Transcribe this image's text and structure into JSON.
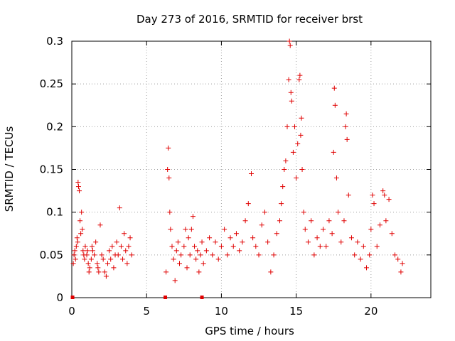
{
  "chart_data": {
    "type": "scatter",
    "title": "Day 273 of 2016, SRMTID for receiver brst",
    "xlabel": "GPS time / hours",
    "ylabel": "SRMTID / TECUs",
    "xlim": [
      0,
      24
    ],
    "ylim": [
      0,
      0.3
    ],
    "x_ticks": [
      0,
      5,
      10,
      15,
      20
    ],
    "x_tick_labels": [
      "0",
      "5",
      "10",
      "15",
      "20"
    ],
    "y_ticks": [
      0,
      0.05,
      0.1,
      0.15,
      0.2,
      0.25,
      0.3
    ],
    "y_tick_labels": [
      "0",
      "0.05",
      "0.1",
      "0.15",
      "0.2",
      "0.25",
      "0.3"
    ],
    "grid": true,
    "marker": "+",
    "colors": {
      "series": "#e00000",
      "grid": "#a0a0a0",
      "axes": "#000000"
    },
    "series": [
      {
        "name": "SRMTID",
        "points": [
          [
            0.1,
            0.04
          ],
          [
            0.15,
            0.05
          ],
          [
            0.2,
            0.055
          ],
          [
            0.25,
            0.045
          ],
          [
            0.3,
            0.06
          ],
          [
            0.35,
            0.07
          ],
          [
            0.4,
            0.065
          ],
          [
            0.42,
            0.135
          ],
          [
            0.45,
            0.13
          ],
          [
            0.5,
            0.125
          ],
          [
            0.55,
            0.09
          ],
          [
            0.6,
            0.075
          ],
          [
            0.65,
            0.1
          ],
          [
            0.7,
            0.08
          ],
          [
            0.75,
            0.055
          ],
          [
            0.8,
            0.05
          ],
          [
            0.85,
            0.045
          ],
          [
            0.9,
            0.06
          ],
          [
            1.0,
            0.05
          ],
          [
            1.05,
            0.055
          ],
          [
            1.1,
            0.04
          ],
          [
            1.15,
            0.03
          ],
          [
            1.2,
            0.035
          ],
          [
            1.3,
            0.045
          ],
          [
            1.35,
            0.06
          ],
          [
            1.4,
            0.055
          ],
          [
            1.5,
            0.05
          ],
          [
            1.6,
            0.065
          ],
          [
            1.7,
            0.04
          ],
          [
            1.75,
            0.035
          ],
          [
            1.8,
            0.03
          ],
          [
            1.9,
            0.085
          ],
          [
            2.0,
            0.05
          ],
          [
            2.1,
            0.045
          ],
          [
            2.2,
            0.03
          ],
          [
            2.3,
            0.025
          ],
          [
            2.4,
            0.04
          ],
          [
            2.5,
            0.055
          ],
          [
            2.6,
            0.045
          ],
          [
            2.7,
            0.06
          ],
          [
            2.8,
            0.035
          ],
          [
            2.9,
            0.05
          ],
          [
            3.0,
            0.065
          ],
          [
            3.1,
            0.05
          ],
          [
            3.2,
            0.105
          ],
          [
            3.3,
            0.06
          ],
          [
            3.4,
            0.045
          ],
          [
            3.5,
            0.075
          ],
          [
            3.6,
            0.055
          ],
          [
            3.7,
            0.04
          ],
          [
            3.8,
            0.06
          ],
          [
            3.9,
            0.07
          ],
          [
            4.0,
            0.05
          ],
          [
            6.3,
            0.03
          ],
          [
            6.4,
            0.15
          ],
          [
            6.45,
            0.175
          ],
          [
            6.5,
            0.14
          ],
          [
            6.55,
            0.1
          ],
          [
            6.6,
            0.08
          ],
          [
            6.7,
            0.06
          ],
          [
            6.8,
            0.045
          ],
          [
            6.9,
            0.02
          ],
          [
            7.0,
            0.055
          ],
          [
            7.1,
            0.065
          ],
          [
            7.2,
            0.04
          ],
          [
            7.3,
            0.05
          ],
          [
            7.5,
            0.06
          ],
          [
            7.6,
            0.08
          ],
          [
            7.7,
            0.035
          ],
          [
            7.8,
            0.07
          ],
          [
            7.9,
            0.05
          ],
          [
            8.0,
            0.08
          ],
          [
            8.1,
            0.095
          ],
          [
            8.2,
            0.06
          ],
          [
            8.3,
            0.045
          ],
          [
            8.4,
            0.055
          ],
          [
            8.5,
            0.03
          ],
          [
            8.6,
            0.05
          ],
          [
            8.7,
            0.065
          ],
          [
            8.8,
            0.04
          ],
          [
            9.0,
            0.055
          ],
          [
            9.2,
            0.07
          ],
          [
            9.4,
            0.05
          ],
          [
            9.6,
            0.065
          ],
          [
            9.8,
            0.045
          ],
          [
            10.0,
            0.06
          ],
          [
            10.2,
            0.08
          ],
          [
            10.4,
            0.05
          ],
          [
            10.6,
            0.07
          ],
          [
            10.8,
            0.06
          ],
          [
            11.0,
            0.075
          ],
          [
            11.2,
            0.055
          ],
          [
            11.4,
            0.065
          ],
          [
            11.6,
            0.09
          ],
          [
            11.8,
            0.11
          ],
          [
            12.0,
            0.145
          ],
          [
            12.1,
            0.07
          ],
          [
            12.3,
            0.06
          ],
          [
            12.5,
            0.05
          ],
          [
            12.7,
            0.085
          ],
          [
            12.9,
            0.1
          ],
          [
            13.1,
            0.065
          ],
          [
            13.3,
            0.03
          ],
          [
            13.5,
            0.05
          ],
          [
            13.7,
            0.075
          ],
          [
            13.9,
            0.09
          ],
          [
            14.0,
            0.11
          ],
          [
            14.1,
            0.13
          ],
          [
            14.2,
            0.15
          ],
          [
            14.3,
            0.16
          ],
          [
            14.4,
            0.2
          ],
          [
            14.5,
            0.255
          ],
          [
            14.55,
            0.3
          ],
          [
            14.6,
            0.295
          ],
          [
            14.65,
            0.24
          ],
          [
            14.7,
            0.23
          ],
          [
            14.8,
            0.17
          ],
          [
            14.9,
            0.2
          ],
          [
            15.0,
            0.14
          ],
          [
            15.1,
            0.18
          ],
          [
            15.2,
            0.255
          ],
          [
            15.25,
            0.26
          ],
          [
            15.3,
            0.19
          ],
          [
            15.35,
            0.21
          ],
          [
            15.4,
            0.15
          ],
          [
            15.5,
            0.1
          ],
          [
            15.6,
            0.08
          ],
          [
            15.8,
            0.065
          ],
          [
            16.0,
            0.09
          ],
          [
            16.2,
            0.05
          ],
          [
            16.4,
            0.07
          ],
          [
            16.6,
            0.06
          ],
          [
            16.8,
            0.08
          ],
          [
            17.0,
            0.06
          ],
          [
            17.2,
            0.09
          ],
          [
            17.4,
            0.075
          ],
          [
            17.5,
            0.17
          ],
          [
            17.55,
            0.245
          ],
          [
            17.6,
            0.225
          ],
          [
            17.7,
            0.14
          ],
          [
            17.8,
            0.1
          ],
          [
            18.0,
            0.065
          ],
          [
            18.2,
            0.09
          ],
          [
            18.3,
            0.2
          ],
          [
            18.35,
            0.215
          ],
          [
            18.4,
            0.185
          ],
          [
            18.5,
            0.12
          ],
          [
            18.7,
            0.07
          ],
          [
            18.9,
            0.05
          ],
          [
            19.1,
            0.065
          ],
          [
            19.3,
            0.045
          ],
          [
            19.5,
            0.06
          ],
          [
            19.7,
            0.035
          ],
          [
            19.9,
            0.05
          ],
          [
            20.0,
            0.08
          ],
          [
            20.1,
            0.12
          ],
          [
            20.2,
            0.11
          ],
          [
            20.4,
            0.06
          ],
          [
            20.6,
            0.085
          ],
          [
            20.8,
            0.125
          ],
          [
            20.9,
            0.12
          ],
          [
            21.0,
            0.09
          ],
          [
            21.2,
            0.115
          ],
          [
            21.4,
            0.075
          ],
          [
            21.6,
            0.05
          ],
          [
            21.8,
            0.045
          ],
          [
            22.0,
            0.03
          ],
          [
            22.1,
            0.04
          ]
        ]
      }
    ],
    "zero_markers": [
      0.05,
      6.25,
      8.7
    ]
  }
}
